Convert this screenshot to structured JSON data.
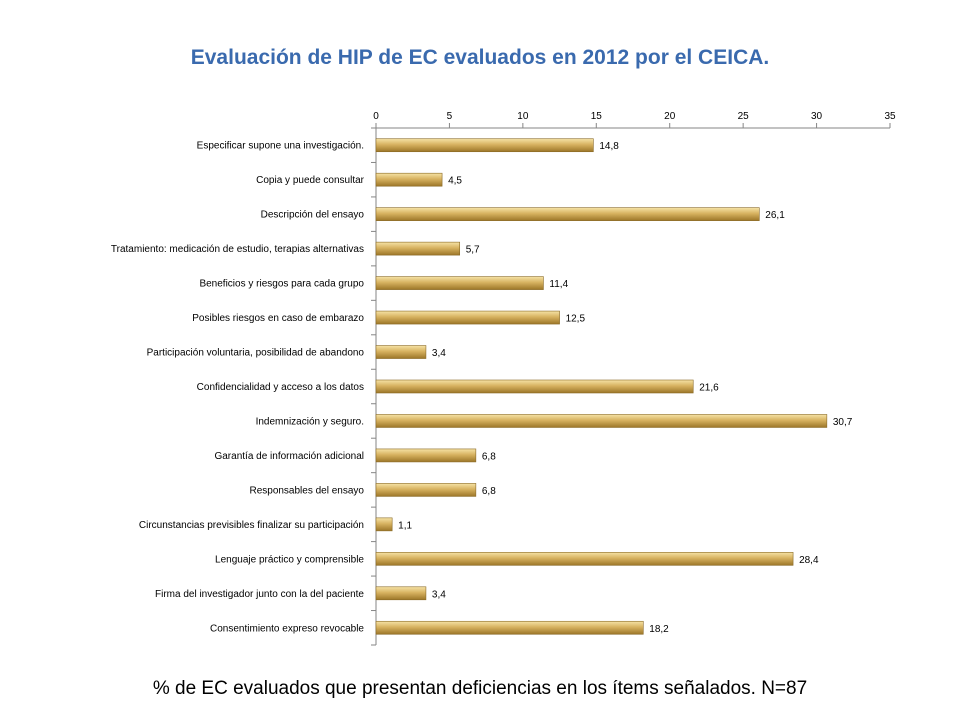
{
  "title": "Evaluación de  HIP de EC evaluados en 2012 por el CEICA.",
  "caption": "% de EC evaluados que presentan deficiencias en los ítems señalados. N=87",
  "chart_data": {
    "type": "bar",
    "orientation": "horizontal",
    "title": "Evaluación de  HIP de EC evaluados en 2012 por el CEICA.",
    "xlabel": "",
    "ylabel": "",
    "xlim": [
      0,
      35
    ],
    "xticks": [
      0,
      5,
      10,
      15,
      20,
      25,
      30,
      35
    ],
    "categories": [
      "Especificar supone una investigación.",
      "Copia y puede consultar",
      "Descripción del ensayo",
      "Tratamiento: medicación de estudio, terapias alternativas",
      "Beneficios y riesgos  para cada grupo",
      "Posibles riesgos en caso de embarazo",
      "Participación voluntaria, posibilidad de abandono",
      "Confidencialidad y acceso a los datos",
      "Indemnización y seguro.",
      "Garantía de información adicional",
      "Responsables del ensayo",
      "Circunstancias previsibles  finalizar su participación",
      "Lenguaje práctico y comprensible",
      "Firma del investigador junto con la del paciente",
      "Consentimiento expreso revocable"
    ],
    "values": [
      14.8,
      4.5,
      26.1,
      5.7,
      11.4,
      12.5,
      3.4,
      21.6,
      30.7,
      6.8,
      6.8,
      1.1,
      28.4,
      3.4,
      18.2
    ],
    "data_labels": [
      "14,8",
      "4,5",
      "26,1",
      "5,7",
      "11,4",
      "12,5",
      "3,4",
      "21,6",
      "30,7",
      "6,8",
      "6,8",
      "1,1",
      "28,4",
      "3,4",
      "18,2"
    ],
    "x_axis_position": "top",
    "grid": false,
    "bar_color": "#C9A24A"
  }
}
